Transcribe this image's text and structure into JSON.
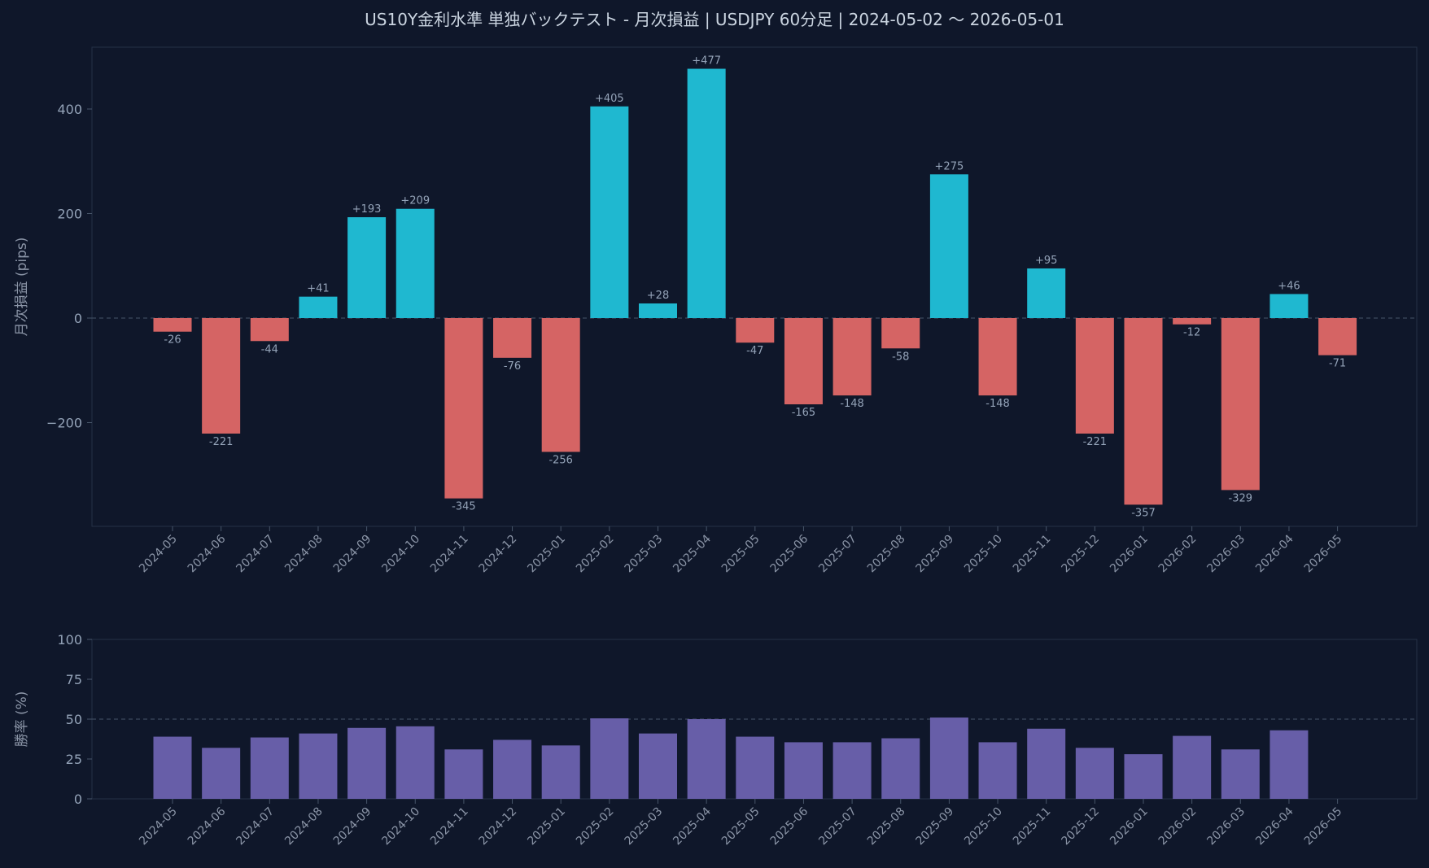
{
  "chart_data": {
    "title": "US10Y金利水準 単独バックテスト - 月次損益 | USDJPY 60分足 | 2024-05-02 〜 2026-05-01",
    "type": "bar",
    "categories": [
      "2024-05",
      "2024-06",
      "2024-07",
      "2024-08",
      "2024-09",
      "2024-10",
      "2024-11",
      "2024-12",
      "2025-01",
      "2025-02",
      "2025-03",
      "2025-04",
      "2025-05",
      "2025-06",
      "2025-07",
      "2025-08",
      "2025-09",
      "2025-10",
      "2025-11",
      "2025-12",
      "2026-01",
      "2026-02",
      "2026-03",
      "2026-04",
      "2026-05"
    ],
    "colors": {
      "background": "#0f172a",
      "positive": "#1fb8d0",
      "negative": "#d56464",
      "winrate": "#675ea8"
    },
    "panels": [
      {
        "id": "pnl",
        "ylabel": "月次損益 (pips)",
        "ylim": [
          -395,
          520
        ],
        "yticks": [
          -200,
          0,
          200,
          400
        ],
        "ytick_labels": [
          "−200",
          "0",
          "200",
          "400"
        ],
        "reference_line": 0,
        "values": [
          -26,
          -221,
          -44,
          41,
          193,
          209,
          -345,
          -76,
          -256,
          405,
          28,
          477,
          -47,
          -165,
          -148,
          -58,
          275,
          -148,
          95,
          -221,
          -357,
          -12,
          -329,
          46,
          -71
        ],
        "data_labels": [
          "-26",
          "-221",
          "-44",
          "+41",
          "+193",
          "+209",
          "-345",
          "-76",
          "-256",
          "+405",
          "+28",
          "+477",
          "-47",
          "-165",
          "-148",
          "-58",
          "+275",
          "-148",
          "+95",
          "-221",
          "-357",
          "-12",
          "-329",
          "+46",
          "-71"
        ]
      },
      {
        "id": "winrate",
        "ylabel": "勝率 (%)",
        "ylim": [
          0,
          100
        ],
        "yticks": [
          0,
          25,
          50,
          75,
          100
        ],
        "ytick_labels": [
          "0",
          "25",
          "50",
          "75",
          "100"
        ],
        "reference_line": 50,
        "values": [
          39,
          32,
          38.5,
          41,
          44.5,
          45.5,
          31,
          37,
          33.5,
          50.5,
          41,
          50,
          39,
          35.5,
          35.5,
          38,
          51,
          35.5,
          44,
          32,
          28,
          39.5,
          31,
          43,
          0
        ]
      }
    ]
  }
}
